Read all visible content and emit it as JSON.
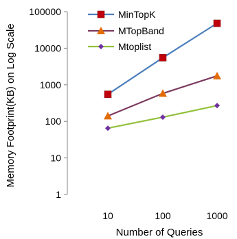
{
  "chart_data": {
    "type": "line",
    "xlabel": "Number of Queries",
    "ylabel": "Memory Footprint(KB) on Log Scale",
    "y_scale": "log",
    "ylim": [
      1,
      100000
    ],
    "y_ticks": [
      "1",
      "10",
      "100",
      "1000",
      "10000",
      "100000"
    ],
    "categories": [
      "10",
      "100",
      "1000"
    ],
    "grid": false,
    "legend_position": "top-left",
    "series": [
      {
        "name": "MinTopK",
        "values": [
          550,
          5500,
          48000
        ],
        "color": "#4a7ebb",
        "marker": "square",
        "marker_color": "#c0000b"
      },
      {
        "name": "MTopBand",
        "values": [
          140,
          580,
          1750
        ],
        "color": "#7b3a5e",
        "marker": "triangle",
        "marker_color": "#e36c09"
      },
      {
        "name": "Mtoplist",
        "values": [
          65,
          130,
          270
        ],
        "color": "#92c13a",
        "marker": "diamond",
        "marker_color": "#7030a0"
      }
    ]
  }
}
